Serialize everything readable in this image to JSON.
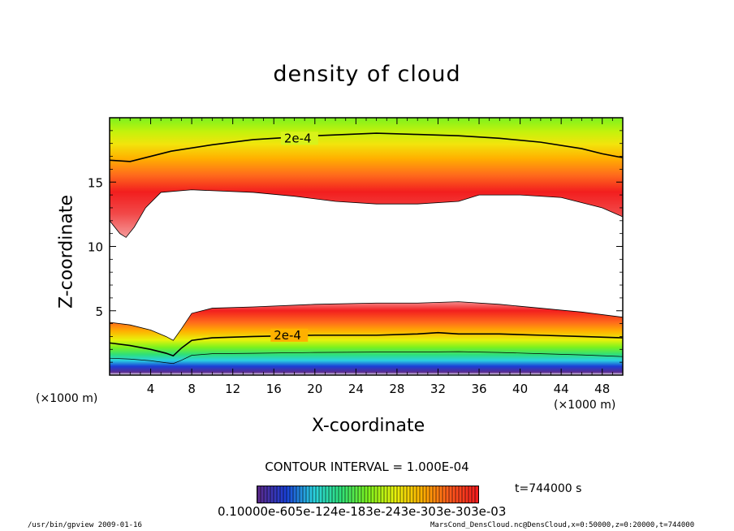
{
  "chart_data": {
    "type": "heatmap",
    "title": "density of cloud",
    "xlabel": "X-coordinate",
    "ylabel": "Z-coordinate",
    "x_unit": "(×1000 m)",
    "xlim": [
      0,
      50
    ],
    "ylim": [
      0,
      20
    ],
    "x_ticks": [
      4,
      8,
      12,
      16,
      20,
      24,
      28,
      32,
      36,
      40,
      44,
      48
    ],
    "y_ticks": [
      5,
      10,
      15
    ],
    "contour_interval": "CONTOUR INTERVAL = 1.000E-04",
    "time_label": "t=744000 s",
    "colorbar_labels": "0.10000e-605e-124e-183e-243e-303e-303e-03",
    "contours": [
      {
        "label": "2e-4",
        "label_at": [
          17.0,
          18.4
        ],
        "points": [
          [
            0,
            16.7
          ],
          [
            2,
            16.6
          ],
          [
            4,
            17.0
          ],
          [
            6,
            17.4
          ],
          [
            10,
            17.9
          ],
          [
            14,
            18.3
          ],
          [
            20,
            18.6
          ],
          [
            26,
            18.8
          ],
          [
            30,
            18.7
          ],
          [
            34,
            18.6
          ],
          [
            38,
            18.4
          ],
          [
            42,
            18.1
          ],
          [
            46,
            17.6
          ],
          [
            48,
            17.2
          ],
          [
            50,
            16.9
          ]
        ]
      },
      {
        "label": "2e-4",
        "label_at": [
          16.0,
          3.1
        ],
        "points": [
          [
            0,
            2.5
          ],
          [
            2,
            2.3
          ],
          [
            4,
            2.0
          ],
          [
            5.5,
            1.7
          ],
          [
            6.2,
            1.5
          ],
          [
            7,
            2.1
          ],
          [
            8,
            2.7
          ],
          [
            10,
            2.9
          ],
          [
            14,
            3.0
          ],
          [
            20,
            3.1
          ],
          [
            26,
            3.1
          ],
          [
            30,
            3.2
          ],
          [
            32,
            3.3
          ],
          [
            34,
            3.2
          ],
          [
            38,
            3.2
          ],
          [
            42,
            3.1
          ],
          [
            46,
            3.0
          ],
          [
            50,
            2.9
          ]
        ]
      }
    ],
    "upper_band": {
      "bottom": [
        [
          0,
          12.0
        ],
        [
          1,
          11.0
        ],
        [
          1.6,
          10.7
        ],
        [
          2.4,
          11.5
        ],
        [
          3.5,
          13.0
        ],
        [
          5,
          14.2
        ],
        [
          8,
          14.4
        ],
        [
          14,
          14.2
        ],
        [
          18,
          13.9
        ],
        [
          22,
          13.5
        ],
        [
          26,
          13.3
        ],
        [
          30,
          13.3
        ],
        [
          34,
          13.5
        ],
        [
          36,
          14.0
        ],
        [
          40,
          14.0
        ],
        [
          44,
          13.8
        ],
        [
          48,
          13.0
        ],
        [
          50,
          12.3
        ]
      ],
      "top": 20
    },
    "lower_band": {
      "top": [
        [
          0,
          4.1
        ],
        [
          2,
          3.9
        ],
        [
          4,
          3.5
        ],
        [
          5.5,
          3.0
        ],
        [
          6.2,
          2.7
        ],
        [
          7,
          3.6
        ],
        [
          8,
          4.8
        ],
        [
          10,
          5.2
        ],
        [
          14,
          5.3
        ],
        [
          20,
          5.5
        ],
        [
          26,
          5.6
        ],
        [
          30,
          5.6
        ],
        [
          34,
          5.7
        ],
        [
          38,
          5.5
        ],
        [
          42,
          5.2
        ],
        [
          46,
          4.9
        ],
        [
          50,
          4.5
        ]
      ],
      "bottom": 0
    },
    "colormap": [
      "#5a2a8f",
      "#1a3fd6",
      "#2ad1e0",
      "#2ee07a",
      "#7cf21e",
      "#e8f20c",
      "#ffb000",
      "#ff5a1c",
      "#f21e1e"
    ]
  },
  "footer": {
    "left": "/usr/bin/gpview  2009-01-16",
    "right": "MarsCond_DensCloud.nc@DensCloud,x=0:50000,z=0:20000,t=744000"
  }
}
